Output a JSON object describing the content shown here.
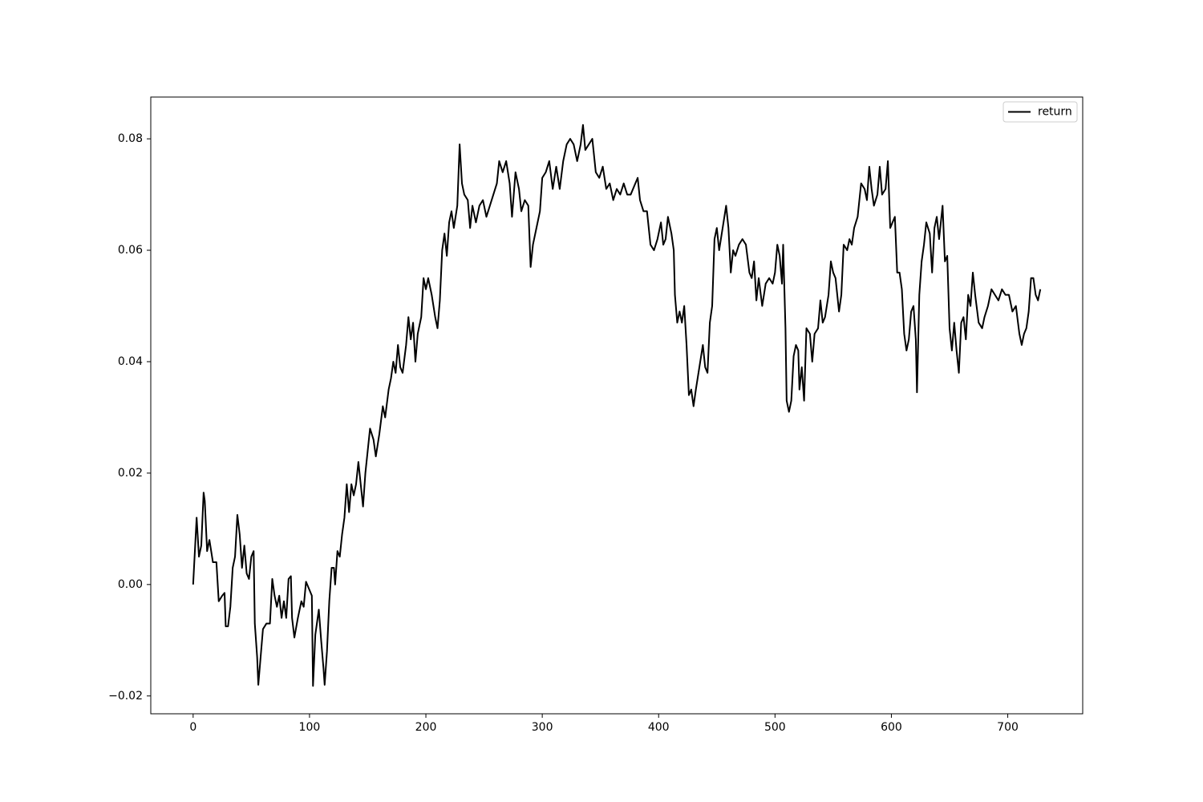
{
  "chart_data": {
    "type": "line",
    "x": [
      0,
      2,
      3,
      5,
      7,
      9,
      10,
      12,
      14,
      17,
      20,
      22,
      25,
      27,
      28,
      30,
      32,
      34,
      36,
      38,
      40,
      42,
      44,
      46,
      48,
      50,
      52,
      53,
      55,
      56,
      58,
      60,
      63,
      66,
      68,
      70,
      72,
      74,
      76,
      78,
      80,
      82,
      84,
      85,
      87,
      90,
      93,
      95,
      97,
      100,
      102,
      103,
      105,
      107,
      108,
      110,
      112,
      113,
      115,
      117,
      119,
      121,
      122,
      124,
      126,
      128,
      130,
      132,
      134,
      136,
      138,
      140,
      142,
      144,
      146,
      148,
      150,
      152,
      155,
      157,
      160,
      163,
      165,
      168,
      170,
      172,
      174,
      176,
      178,
      180,
      183,
      185,
      187,
      189,
      191,
      193,
      196,
      198,
      200,
      202,
      205,
      208,
      210,
      212,
      214,
      216,
      218,
      220,
      222,
      224,
      227,
      229,
      231,
      233,
      236,
      238,
      240,
      243,
      246,
      249,
      252,
      255,
      258,
      261,
      263,
      266,
      269,
      272,
      274,
      277,
      280,
      282,
      285,
      288,
      290,
      292,
      295,
      298,
      300,
      303,
      306,
      309,
      312,
      315,
      318,
      321,
      324,
      327,
      330,
      333,
      335,
      337,
      340,
      343,
      346,
      349,
      352,
      355,
      358,
      361,
      364,
      367,
      370,
      373,
      376,
      380,
      382,
      384,
      387,
      390,
      393,
      396,
      399,
      402,
      404,
      406,
      408,
      411,
      413,
      414,
      416,
      418,
      420,
      422,
      424,
      426,
      428,
      430,
      432,
      435,
      438,
      440,
      442,
      444,
      446,
      448,
      450,
      452,
      455,
      458,
      460,
      462,
      464,
      466,
      469,
      472,
      475,
      478,
      480,
      482,
      484,
      486,
      489,
      492,
      495,
      498,
      500,
      502,
      504,
      506,
      507,
      509,
      510,
      512,
      514,
      516,
      518,
      520,
      521,
      523,
      525,
      527,
      530,
      532,
      534,
      537,
      539,
      541,
      543,
      546,
      548,
      550,
      552,
      555,
      557,
      559,
      562,
      564,
      566,
      568,
      571,
      574,
      577,
      579,
      581,
      583,
      585,
      588,
      590,
      592,
      595,
      597,
      599,
      601,
      603,
      605,
      607,
      609,
      611,
      613,
      615,
      617,
      619,
      621,
      622,
      624,
      626,
      628,
      630,
      633,
      635,
      637,
      639,
      641,
      644,
      646,
      648,
      650,
      652,
      654,
      656,
      658,
      660,
      662,
      664,
      666,
      668,
      670,
      672,
      675,
      678,
      680,
      683,
      686,
      689,
      692,
      695,
      698,
      701,
      704,
      707,
      710,
      712,
      714,
      716,
      718,
      720,
      722,
      724,
      726,
      728
    ],
    "series": [
      {
        "name": "return",
        "color": "#000000",
        "values": [
          0.0,
          0.008,
          0.012,
          0.005,
          0.007,
          0.0165,
          0.015,
          0.006,
          0.008,
          0.004,
          0.004,
          -0.003,
          -0.002,
          -0.0015,
          -0.0075,
          -0.0075,
          -0.004,
          0.003,
          0.005,
          0.0125,
          0.009,
          0.003,
          0.007,
          0.002,
          0.001,
          0.005,
          0.006,
          -0.007,
          -0.013,
          -0.018,
          -0.013,
          -0.008,
          -0.007,
          -0.007,
          0.001,
          -0.002,
          -0.004,
          -0.002,
          -0.006,
          -0.003,
          -0.006,
          0.001,
          0.0015,
          -0.006,
          -0.0095,
          -0.006,
          -0.003,
          -0.004,
          0.0005,
          -0.001,
          -0.002,
          -0.0182,
          -0.009,
          -0.006,
          -0.0045,
          -0.01,
          -0.015,
          -0.018,
          -0.012,
          -0.003,
          0.003,
          0.003,
          0.0,
          0.006,
          0.005,
          0.009,
          0.012,
          0.018,
          0.013,
          0.018,
          0.016,
          0.018,
          0.022,
          0.018,
          0.014,
          0.02,
          0.024,
          0.028,
          0.026,
          0.023,
          0.027,
          0.032,
          0.03,
          0.035,
          0.037,
          0.04,
          0.038,
          0.043,
          0.039,
          0.038,
          0.043,
          0.048,
          0.044,
          0.047,
          0.04,
          0.045,
          0.048,
          0.055,
          0.053,
          0.055,
          0.052,
          0.048,
          0.046,
          0.051,
          0.06,
          0.063,
          0.059,
          0.065,
          0.067,
          0.064,
          0.068,
          0.079,
          0.072,
          0.07,
          0.069,
          0.064,
          0.068,
          0.065,
          0.068,
          0.069,
          0.066,
          0.068,
          0.07,
          0.072,
          0.076,
          0.074,
          0.076,
          0.072,
          0.066,
          0.074,
          0.071,
          0.067,
          0.069,
          0.068,
          0.057,
          0.061,
          0.064,
          0.067,
          0.073,
          0.074,
          0.076,
          0.071,
          0.075,
          0.071,
          0.076,
          0.079,
          0.08,
          0.079,
          0.076,
          0.079,
          0.0825,
          0.078,
          0.079,
          0.08,
          0.074,
          0.073,
          0.075,
          0.071,
          0.072,
          0.069,
          0.071,
          0.07,
          0.072,
          0.07,
          0.07,
          0.072,
          0.073,
          0.069,
          0.067,
          0.067,
          0.061,
          0.06,
          0.062,
          0.065,
          0.061,
          0.062,
          0.066,
          0.063,
          0.06,
          0.052,
          0.047,
          0.049,
          0.047,
          0.05,
          0.043,
          0.034,
          0.035,
          0.032,
          0.035,
          0.039,
          0.043,
          0.039,
          0.038,
          0.047,
          0.05,
          0.062,
          0.064,
          0.06,
          0.064,
          0.068,
          0.064,
          0.056,
          0.06,
          0.059,
          0.061,
          0.062,
          0.061,
          0.056,
          0.055,
          0.058,
          0.051,
          0.055,
          0.05,
          0.054,
          0.055,
          0.054,
          0.056,
          0.061,
          0.059,
          0.054,
          0.061,
          0.046,
          0.033,
          0.031,
          0.033,
          0.041,
          0.043,
          0.042,
          0.035,
          0.039,
          0.033,
          0.046,
          0.045,
          0.04,
          0.045,
          0.046,
          0.051,
          0.047,
          0.048,
          0.052,
          0.058,
          0.056,
          0.055,
          0.049,
          0.052,
          0.061,
          0.06,
          0.062,
          0.061,
          0.064,
          0.066,
          0.072,
          0.071,
          0.069,
          0.075,
          0.071,
          0.068,
          0.07,
          0.075,
          0.07,
          0.071,
          0.076,
          0.064,
          0.065,
          0.066,
          0.056,
          0.056,
          0.053,
          0.045,
          0.042,
          0.044,
          0.049,
          0.05,
          0.044,
          0.0345,
          0.052,
          0.058,
          0.061,
          0.065,
          0.063,
          0.056,
          0.064,
          0.066,
          0.062,
          0.068,
          0.058,
          0.059,
          0.046,
          0.042,
          0.047,
          0.042,
          0.038,
          0.047,
          0.048,
          0.044,
          0.052,
          0.05,
          0.056,
          0.052,
          0.047,
          0.046,
          0.048,
          0.05,
          0.053,
          0.052,
          0.051,
          0.053,
          0.052,
          0.052,
          0.049,
          0.05,
          0.045,
          0.043,
          0.045,
          0.046,
          0.049,
          0.055,
          0.055,
          0.052,
          0.051,
          0.053
        ]
      }
    ],
    "xlim": [
      -36.4,
      764.4
    ],
    "ylim": [
      -0.0232,
      0.0875
    ],
    "xticks": [
      0,
      100,
      200,
      300,
      400,
      500,
      600,
      700
    ],
    "yticks": [
      {
        "value": -0.02,
        "label": "−0.02"
      },
      {
        "value": 0,
        "label": "0.00"
      },
      0.02,
      0.04,
      0.06,
      0.08
    ],
    "legend": "upper right"
  }
}
